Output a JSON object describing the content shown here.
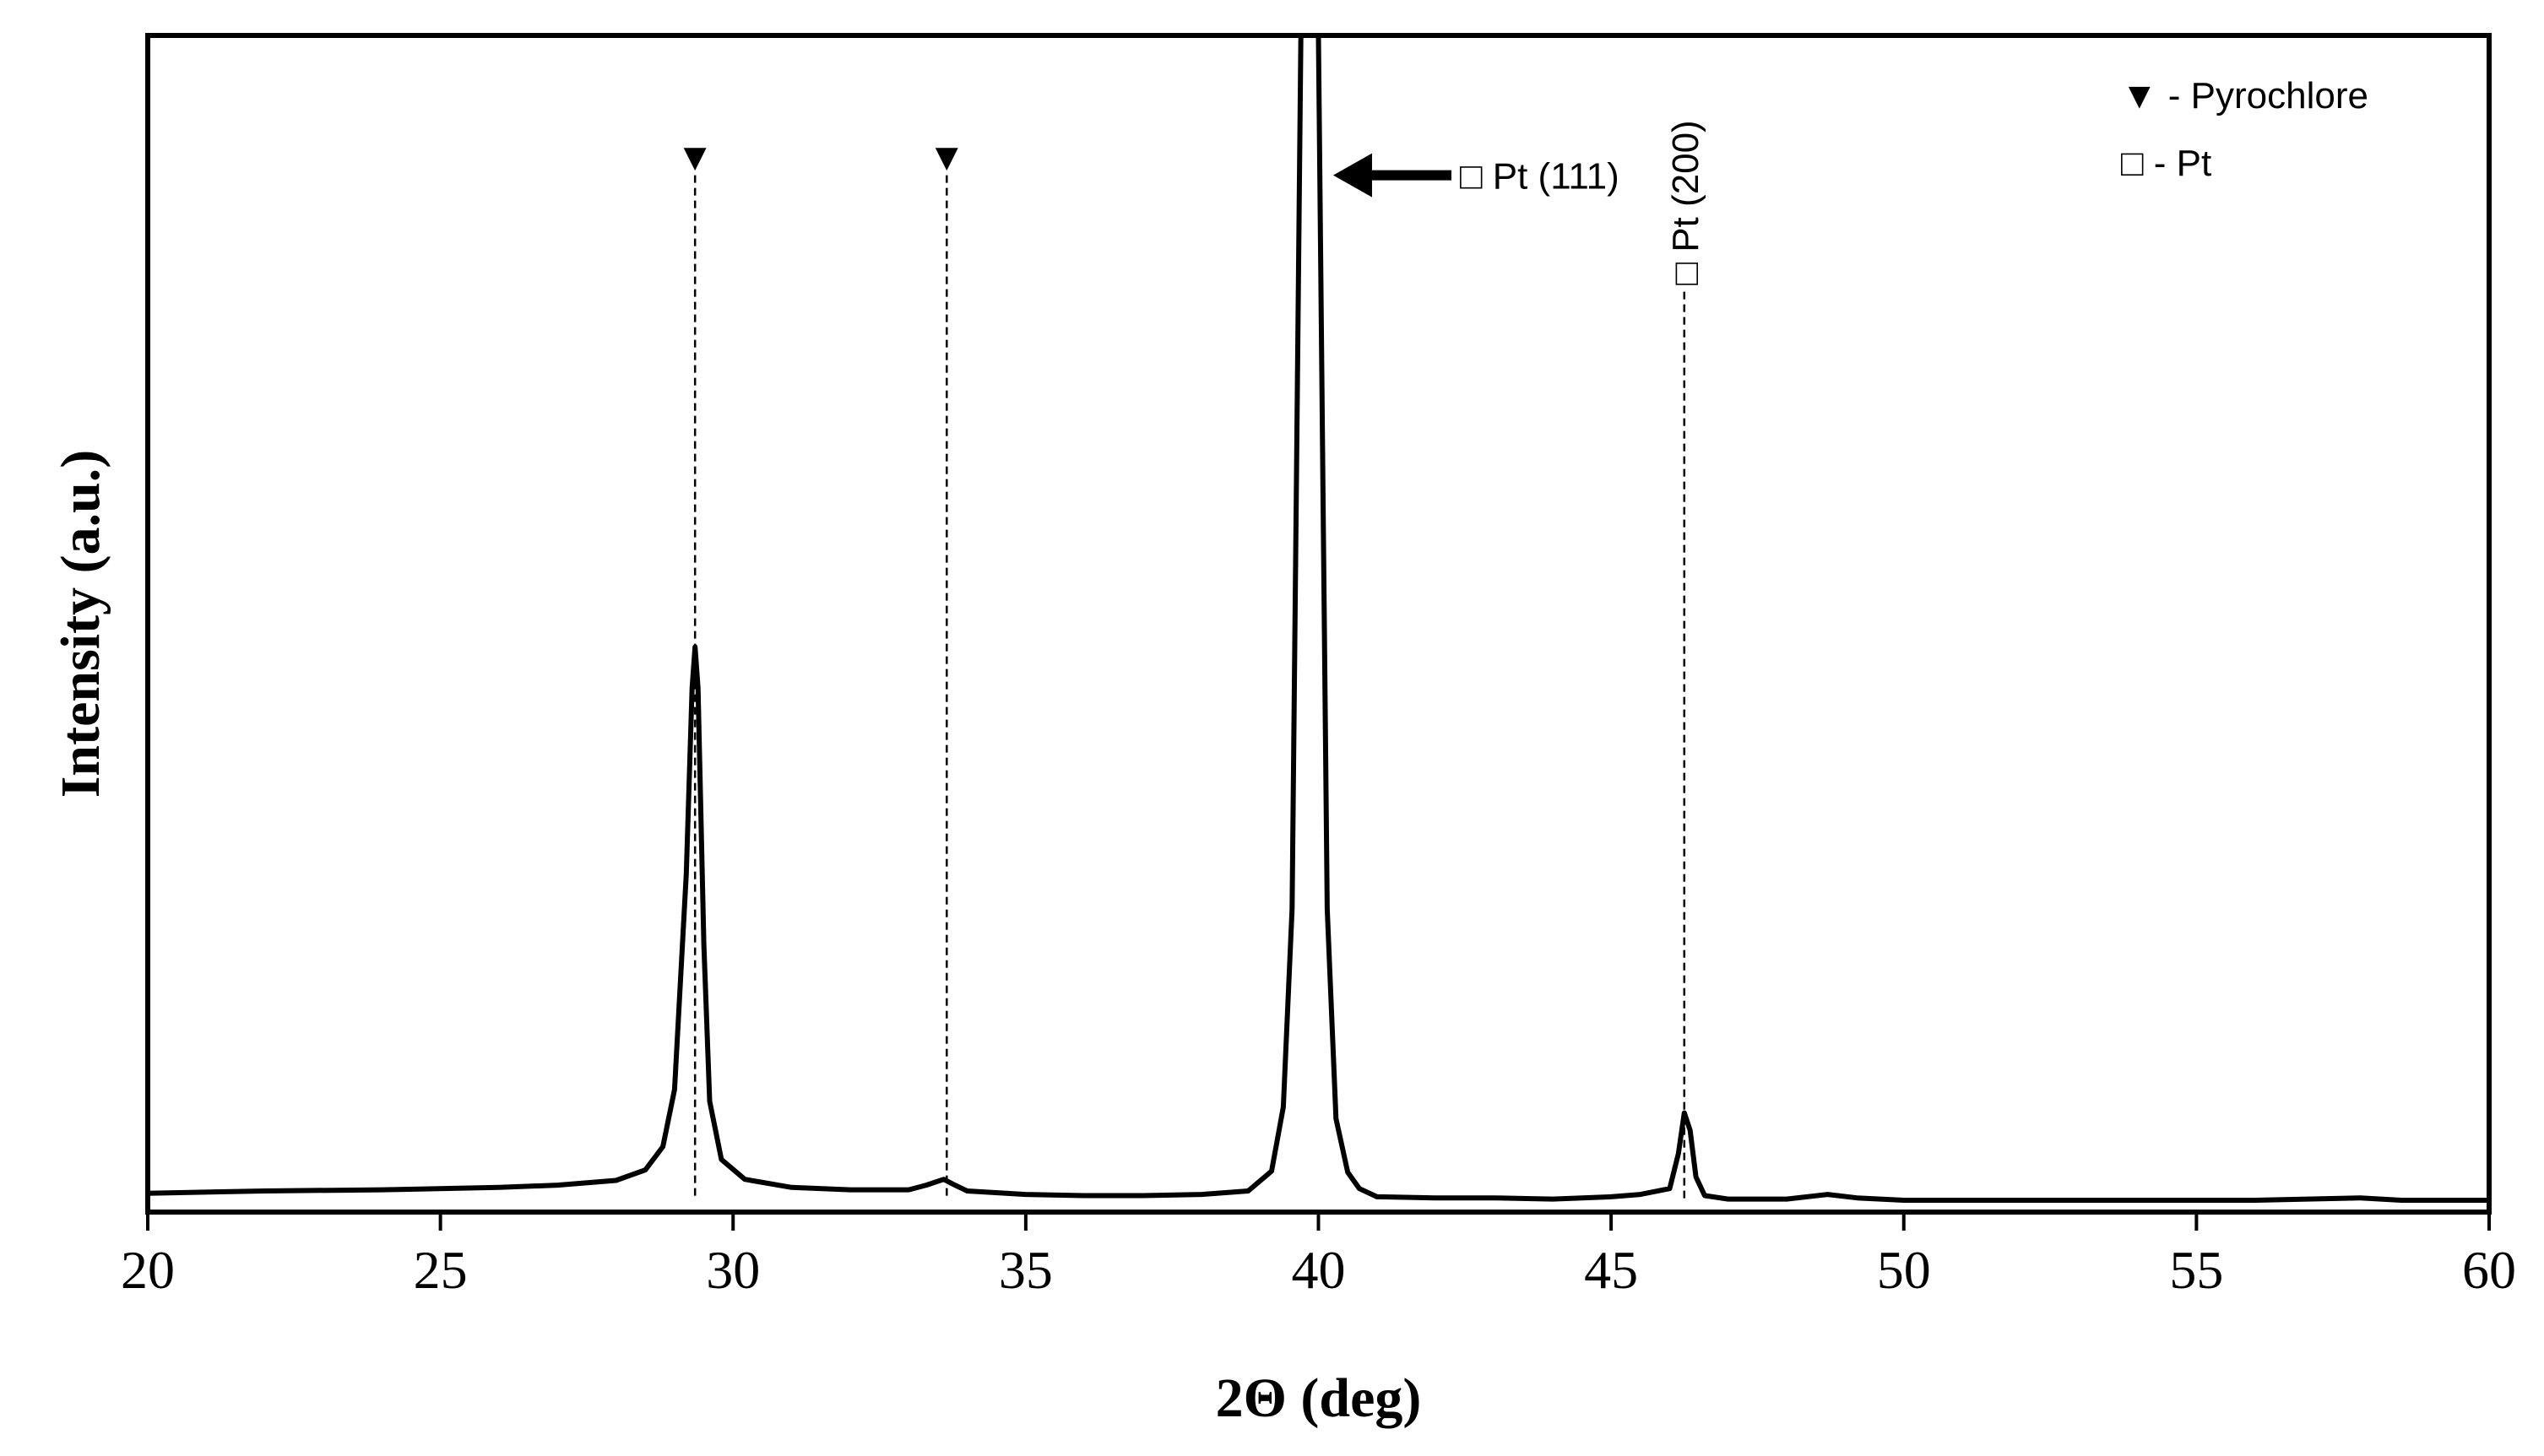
{
  "chart_data": {
    "type": "line",
    "title": "",
    "xlabel": "2Θ (deg)",
    "ylabel": "Intensity (a.u.)",
    "xlim": [
      20,
      60
    ],
    "ylim": [
      0,
      100
    ],
    "x_ticks": [
      "20",
      "25",
      "30",
      "35",
      "40",
      "45",
      "50",
      "55",
      "60"
    ],
    "y_ticks": [],
    "grid": false,
    "series": [
      {
        "x": [
          20,
          22,
          24,
          26,
          27,
          28,
          28.5,
          28.8,
          29.0,
          29.2,
          29.3,
          29.35,
          29.4,
          29.5,
          29.6,
          29.8,
          30.2,
          31,
          32,
          33,
          33.3,
          33.6,
          33.75,
          34,
          35,
          36,
          37,
          38,
          38.8,
          39.2,
          39.4,
          39.55,
          39.62,
          39.7,
          40.0,
          40.08,
          40.15,
          40.3,
          40.5,
          40.7,
          41,
          42,
          43,
          44,
          45,
          45.5,
          46.0,
          46.15,
          46.25,
          46.35,
          46.45,
          46.6,
          47,
          48,
          48.7,
          49.2,
          50,
          52,
          54,
          56,
          57.8,
          58.5,
          60
        ],
        "y": [
          0.6,
          0.8,
          0.9,
          1.1,
          1.3,
          1.7,
          2.6,
          4.6,
          9.5,
          28,
          44,
          47.5,
          44,
          22,
          8.5,
          3.5,
          1.8,
          1.1,
          0.9,
          0.9,
          1.3,
          1.8,
          1.4,
          0.8,
          0.5,
          0.4,
          0.4,
          0.5,
          0.8,
          2.5,
          8,
          25,
          60,
          100,
          100,
          60,
          25,
          7,
          2.4,
          1.0,
          0.3,
          0.2,
          0.2,
          0.1,
          0.3,
          0.5,
          1.0,
          4.0,
          7.5,
          6.0,
          2.0,
          0.4,
          0.1,
          0.1,
          0.5,
          0.2,
          0,
          0,
          0,
          0,
          0.2,
          0,
          0
        ]
      }
    ],
    "reference_lines": [
      {
        "x": 29.35,
        "marker": "▼",
        "top": 88
      },
      {
        "x": 33.65,
        "marker": "▼",
        "top": 88
      },
      {
        "x": 46.25,
        "marker": "□",
        "top": 78
      }
    ],
    "annotations": [
      {
        "text": "□ Pt (111)",
        "x": 40.05,
        "y": 88,
        "arrow": true
      },
      {
        "text": "□ Pt (200)",
        "x": 46.25,
        "y": 78,
        "rotation": -90
      }
    ],
    "legend": {
      "placement": "top-right",
      "entries": [
        {
          "symbol": "▼",
          "text": " - Pyrochlore"
        },
        {
          "symbol": "□",
          "text": " - Pt"
        }
      ]
    }
  }
}
